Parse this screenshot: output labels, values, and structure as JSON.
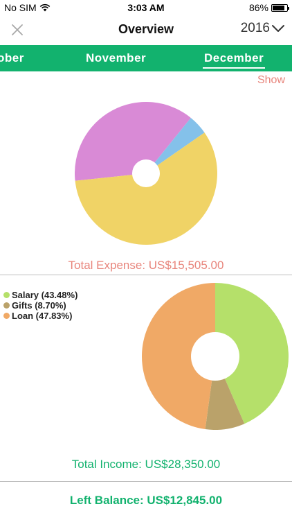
{
  "status_bar": {
    "carrier": "No SIM",
    "wifi_icon": "wifi-icon",
    "time": "3:03 AM",
    "battery_text": "86%",
    "battery_level": 0.86
  },
  "nav": {
    "close_icon": "close-icon",
    "title": "Overview",
    "year": "2016",
    "dropdown_icon": "chevron-down-icon"
  },
  "months": {
    "prev_label": "ober",
    "current_label": "November",
    "active_label": "December",
    "bar_color": "#12b26e"
  },
  "show_label": "Show",
  "chart_data": [
    {
      "type": "pie",
      "slices": [
        {
          "value": 37.5,
          "color": "#d98ad6"
        },
        {
          "value": 4.5,
          "color": "#84c1ea"
        },
        {
          "value": 58.0,
          "color": "#f0d366"
        }
      ]
    },
    {
      "type": "pie",
      "slices": [
        {
          "name": "Salary (43.48%)",
          "value": 43.48,
          "color": "#b5e06a"
        },
        {
          "name": "Gifts (8.70%)",
          "value": 8.7,
          "color": "#baa26a"
        },
        {
          "name": "Loan (47.83%)",
          "value": 47.83,
          "color": "#f0a966"
        }
      ]
    }
  ],
  "total_expense": "Total Expense: US$15,505.00",
  "total_income": "Total Income: US$28,350.00",
  "left_balance": "Left Balance: US$12,845.00",
  "colors": {
    "accent_green": "#12b26e",
    "expense_red": "#e8857c"
  }
}
